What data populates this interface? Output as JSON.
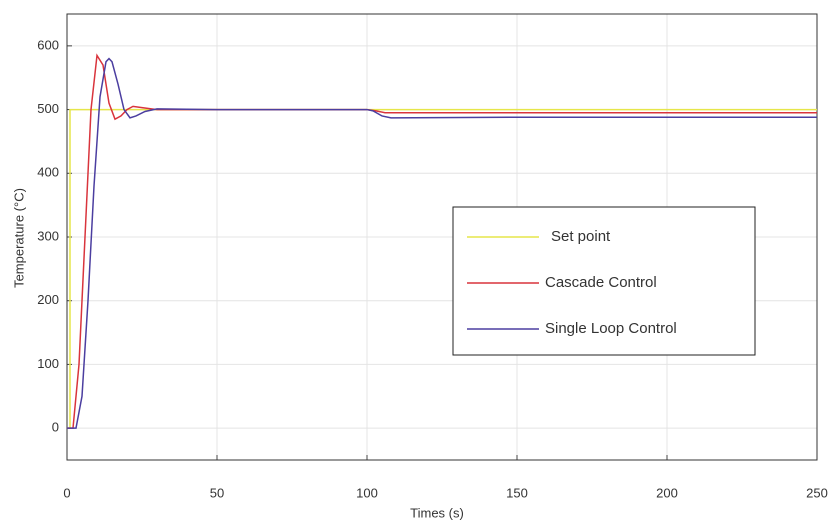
{
  "chart_data": {
    "type": "line",
    "xlabel": "Times (s)",
    "ylabel": "Temperature (°C)",
    "xlim": [
      0,
      250
    ],
    "xticks": [
      0,
      50,
      100,
      150,
      200,
      250
    ],
    "ylim": [
      -50,
      650
    ],
    "yticks": [
      0,
      100,
      200,
      300,
      400,
      500,
      600
    ],
    "grid": true,
    "legend": "right",
    "series": [
      {
        "name": "Set point",
        "color": "#e6e64a",
        "x": [
          0,
          1,
          1,
          250
        ],
        "values": [
          0,
          0,
          500,
          500
        ]
      },
      {
        "name": "Cascade Control",
        "color": "#d9343c",
        "x": [
          0,
          2,
          4,
          6,
          8,
          10,
          12,
          14,
          16,
          18,
          20,
          22,
          25,
          30,
          50,
          100,
          103,
          106,
          150,
          250
        ],
        "values": [
          0,
          0,
          100,
          300,
          500,
          585,
          570,
          510,
          485,
          490,
          500,
          505,
          503,
          500,
          500,
          500,
          498,
          495,
          495,
          495
        ]
      },
      {
        "name": "Single Loop Control",
        "color": "#4b3ea0",
        "x": [
          0,
          3,
          5,
          7,
          9,
          11,
          13,
          14,
          15,
          17,
          19,
          21,
          23,
          26,
          30,
          50,
          100,
          102,
          105,
          108,
          150,
          250
        ],
        "values": [
          0,
          0,
          50,
          200,
          380,
          520,
          575,
          580,
          575,
          540,
          500,
          487,
          490,
          497,
          501,
          500,
          500,
          498,
          490,
          487,
          488,
          488
        ]
      }
    ]
  }
}
